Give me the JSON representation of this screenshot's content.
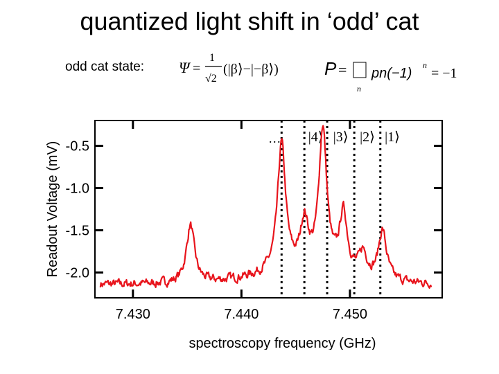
{
  "slide": {
    "title": "quantized light shift in ‘odd’ cat",
    "state_label": "odd cat state:",
    "psi_symbol": "Ψ",
    "psi_coeff_num": "1",
    "psi_coeff_den": "√2",
    "psi_body": "(|β⟩−|−β⟩)",
    "p_symbol": "P",
    "p_body": "= ∑ pn(−1)n = −1",
    "p_sum_index": "n",
    "p_n_sub": "n",
    "p_exp": "n",
    "p_rhs": "= −1",
    "p_main": "pn(−1)"
  },
  "chart_data": {
    "type": "line",
    "xlabel": "spectroscopy frequency (GHz)",
    "ylabel": "Readout Voltage (mV)",
    "xlim": [
      7.4265,
      7.4585
    ],
    "ylim": [
      -2.3,
      -0.2
    ],
    "x_ticks": [
      7.43,
      7.44,
      7.45
    ],
    "x_tick_labels": [
      "7.430",
      "7.440",
      "7.450"
    ],
    "y_ticks": [
      -0.5,
      -1.0,
      -1.5,
      -2.0
    ],
    "y_tick_labels": [
      "-0.5",
      "-1.0",
      "-1.5",
      "-2.0"
    ],
    "baseline": -2.14,
    "peaks": [
      {
        "x": 7.4353,
        "y": -1.45
      },
      {
        "x": 7.4437,
        "y": -0.62
      },
      {
        "x": 7.4458,
        "y": -1.58
      },
      {
        "x": 7.4475,
        "y": -0.45
      },
      {
        "x": 7.4494,
        "y": -1.42
      },
      {
        "x": 7.4512,
        "y": -1.85
      },
      {
        "x": 7.453,
        "y": -1.55
      }
    ],
    "fock_markers": [
      {
        "label": "…",
        "x": 7.4437
      },
      {
        "label": "|4⟩",
        "x": 7.4458
      },
      {
        "label": "|3⟩",
        "x": 7.4479
      },
      {
        "label": "|2⟩",
        "x": 7.4504
      },
      {
        "label": "|1⟩",
        "x": 7.4528
      }
    ],
    "line_color": "#e8141c",
    "grid": false
  }
}
